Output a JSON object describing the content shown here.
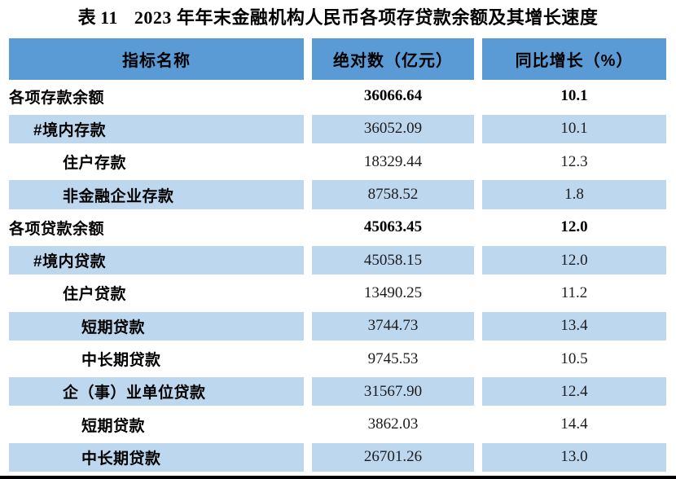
{
  "title": {
    "prefix": "表",
    "number": "11",
    "year": "2023",
    "rest": "年年末金融机构人民币各项存贷款余额及其增长速度"
  },
  "table": {
    "header": {
      "indicator": "指标名称",
      "absolute": "绝对数（亿元）",
      "growth": "同比增长（%）"
    },
    "rows": [
      {
        "label": "各项存款余额",
        "abs": "36066.64",
        "growth": "10.1",
        "indent": 0,
        "emphasis": true
      },
      {
        "label": "#境内存款",
        "abs": "36052.09",
        "growth": "10.1",
        "indent": 1,
        "emphasis": false
      },
      {
        "label": "住户存款",
        "abs": "18329.44",
        "growth": "12.3",
        "indent": 2,
        "emphasis": false
      },
      {
        "label": "非金融企业存款",
        "abs": "8758.52",
        "growth": "1.8",
        "indent": 2,
        "emphasis": false
      },
      {
        "label": "各项贷款余额",
        "abs": "45063.45",
        "growth": "12.0",
        "indent": 0,
        "emphasis": true
      },
      {
        "label": "#境内贷款",
        "abs": "45058.15",
        "growth": "12.0",
        "indent": 1,
        "emphasis": false
      },
      {
        "label": "住户贷款",
        "abs": "13490.25",
        "growth": "11.2",
        "indent": 2,
        "emphasis": false
      },
      {
        "label": "短期贷款",
        "abs": "3744.73",
        "growth": "13.4",
        "indent": 3,
        "emphasis": false
      },
      {
        "label": "中长期贷款",
        "abs": "9745.53",
        "growth": "10.5",
        "indent": 3,
        "emphasis": false
      },
      {
        "label": "企（事）业单位贷款",
        "abs": "31567.90",
        "growth": "12.4",
        "indent": 2,
        "emphasis": false
      },
      {
        "label": "短期贷款",
        "abs": "3862.03",
        "growth": "14.4",
        "indent": 3,
        "emphasis": false
      },
      {
        "label": "中长期贷款",
        "abs": "26701.26",
        "growth": "13.0",
        "indent": 3,
        "emphasis": false
      }
    ]
  },
  "colors": {
    "header_blue": "#5B9BD5",
    "band_blue": "#BDD7EE",
    "rule_black": "#000000"
  }
}
